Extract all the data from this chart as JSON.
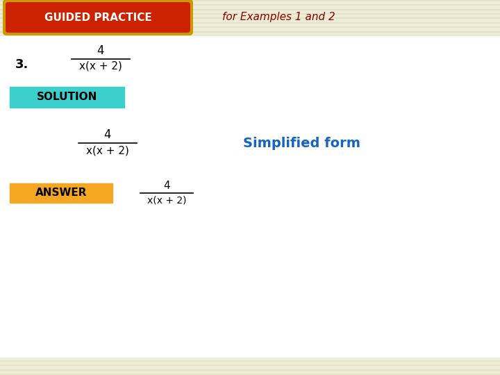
{
  "background_color": "#f5f5d0",
  "guided_practice_bg": "#cc2200",
  "guided_practice_border": "#cc9900",
  "guided_practice_text": "GUIDED PRACTICE",
  "guided_practice_text_color": "#ffffff",
  "for_examples_text": "for Examples 1 and 2",
  "for_examples_color": "#8b0000",
  "problem_number": "3.",
  "problem_number_color": "#000000",
  "fraction_numerator": "4",
  "fraction_denominator": "x(x + 2)",
  "solution_bg": "#3dcfca",
  "solution_text": "SOLUTION",
  "solution_text_color": "#000000",
  "simplified_form_text": "Simplified form",
  "simplified_form_color": "#1565c0",
  "answer_bg": "#f5a623",
  "answer_text": "ANSWER",
  "answer_text_color": "#000000",
  "main_bg": "#ffffff",
  "header_stripe_light": "#eeeed8",
  "header_stripe_dark": "#e4e4c4",
  "bottom_stripe_color": "#eeeed8"
}
